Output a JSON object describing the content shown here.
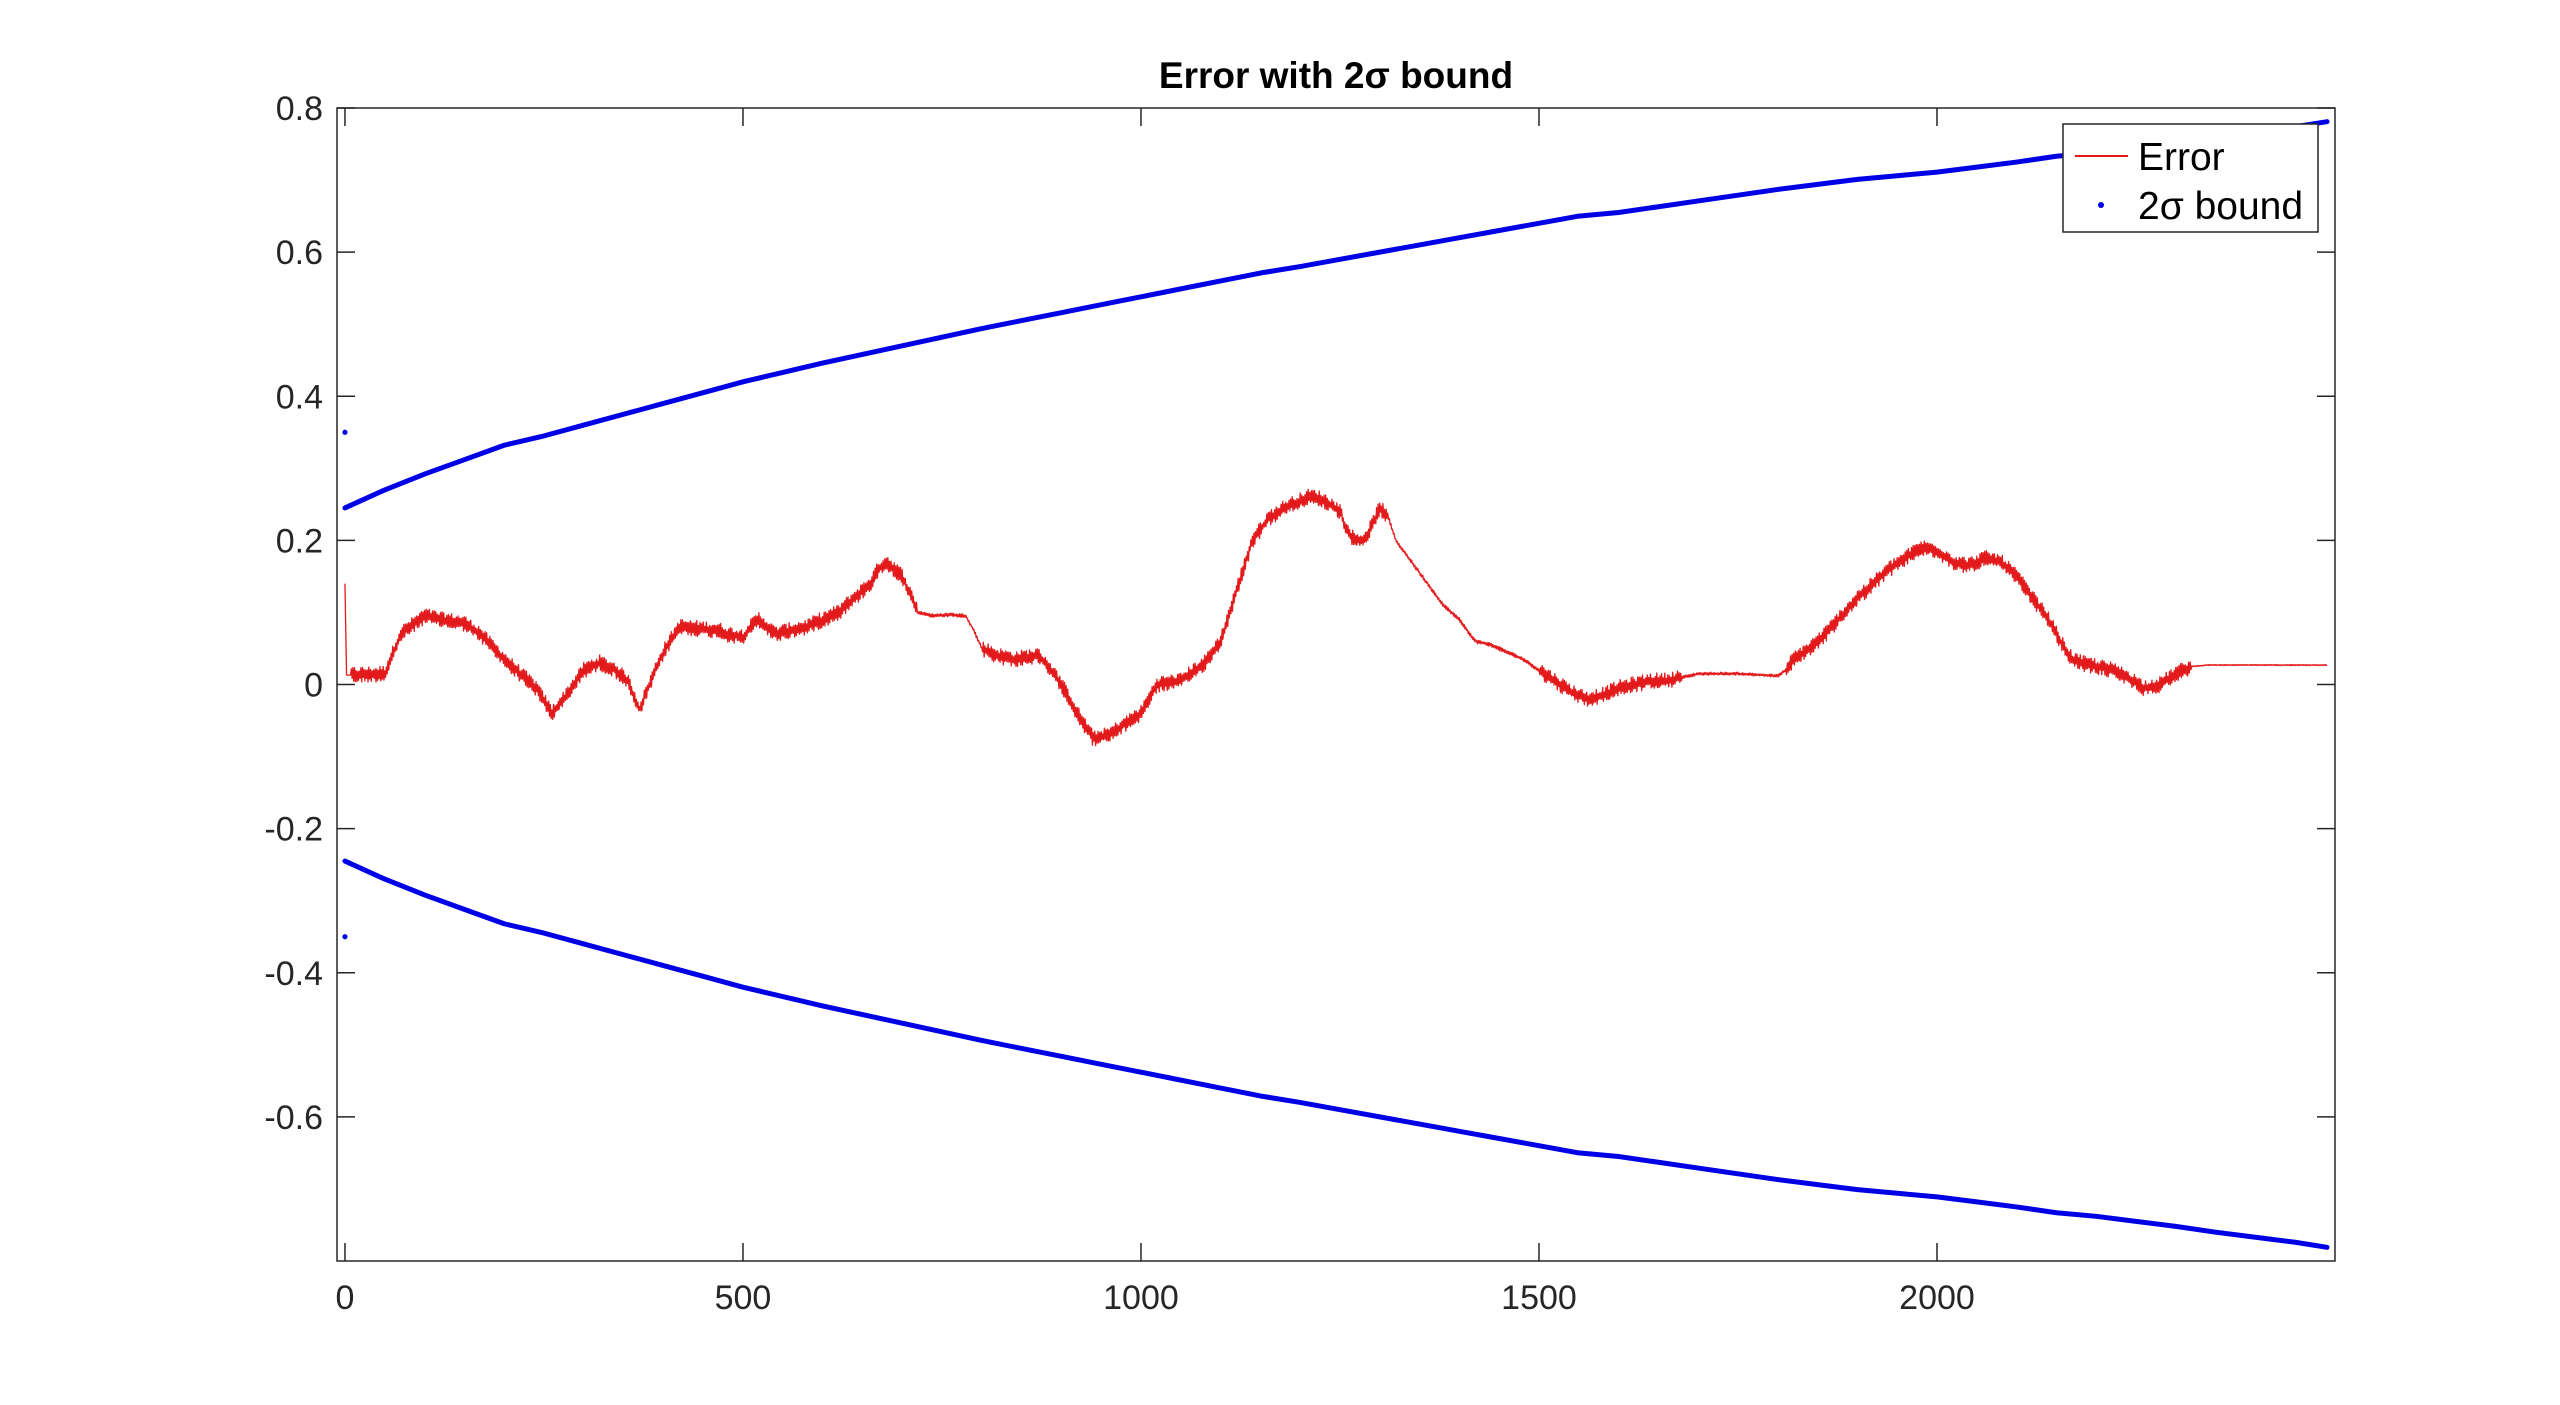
{
  "chart_data": {
    "type": "line",
    "title": "Error with 2σ bound",
    "xlabel": "",
    "ylabel": "",
    "xlim": [
      -10,
      2500
    ],
    "ylim": [
      -0.8,
      0.8
    ],
    "grid": false,
    "legend_position": "top-right",
    "x_ticks": [
      0,
      500,
      1000,
      1500,
      2000
    ],
    "x_tick_labels": [
      "0",
      "500",
      "1000",
      "1500",
      "2000"
    ],
    "y_ticks": [
      0.8,
      0.6,
      0.4,
      0.2,
      0,
      -0.2,
      -0.4,
      -0.6
    ],
    "y_tick_labels": [
      "0.8",
      "0.6",
      "0.4",
      "0.2",
      "0",
      "-0.2",
      "-0.4",
      "-0.6"
    ],
    "legend": [
      {
        "label": "Error",
        "marker": "line",
        "color": "#e31a1c"
      },
      {
        "label": "2σ bound",
        "marker": "dot",
        "color": "#0000e6"
      }
    ],
    "series": [
      {
        "name": "Error",
        "color": "#e31a1c",
        "style": "thin-line-with-jitter",
        "x": [
          0,
          2,
          5,
          50,
          70,
          100,
          120,
          150,
          170,
          200,
          220,
          240,
          260,
          275,
          300,
          320,
          340,
          355,
          370,
          390,
          400,
          420,
          440,
          470,
          480,
          500,
          510,
          520,
          540,
          560,
          580,
          600,
          620,
          640,
          660,
          670,
          680,
          700,
          720,
          740,
          760,
          780,
          790,
          800,
          820,
          840,
          870,
          880,
          900,
          920,
          940,
          960,
          980,
          1000,
          1010,
          1020,
          1050,
          1080,
          1100,
          1120,
          1140,
          1160,
          1180,
          1200,
          1210,
          1220,
          1230,
          1250,
          1260,
          1270,
          1280,
          1290,
          1300,
          1310,
          1320,
          1340,
          1360,
          1380,
          1400,
          1420,
          1440,
          1460,
          1480,
          1500,
          1520,
          1540,
          1560,
          1580,
          1600,
          1620,
          1640,
          1660,
          1680,
          1700,
          1720,
          1750,
          1780,
          1800,
          1810,
          1820,
          1840,
          1860,
          1880,
          1900,
          1920,
          1940,
          1960,
          1980,
          2000,
          2020,
          2040,
          2060,
          2080,
          2100,
          2120,
          2140,
          2160,
          2170,
          2180,
          2200,
          2220,
          2240,
          2260,
          2280,
          2300,
          2320,
          2340,
          2360,
          2400,
          2450,
          2490
        ],
        "y": [
          0.14,
          0.013,
          0.013,
          0.015,
          0.07,
          0.095,
          0.09,
          0.085,
          0.07,
          0.035,
          0.015,
          -0.005,
          -0.04,
          -0.02,
          0.02,
          0.03,
          0.02,
          0.005,
          -0.035,
          0.02,
          0.045,
          0.08,
          0.078,
          0.075,
          0.07,
          0.066,
          0.08,
          0.09,
          0.07,
          0.075,
          0.08,
          0.09,
          0.1,
          0.12,
          0.14,
          0.16,
          0.17,
          0.15,
          0.1,
          0.095,
          0.097,
          0.095,
          0.075,
          0.05,
          0.04,
          0.035,
          0.04,
          0.03,
          0.0,
          -0.04,
          -0.075,
          -0.07,
          -0.055,
          -0.04,
          -0.02,
          0.0,
          0.005,
          0.03,
          0.06,
          0.13,
          0.2,
          0.23,
          0.245,
          0.255,
          0.26,
          0.26,
          0.255,
          0.24,
          0.21,
          0.2,
          0.2,
          0.22,
          0.245,
          0.235,
          0.2,
          0.17,
          0.14,
          0.11,
          0.09,
          0.06,
          0.055,
          0.045,
          0.035,
          0.02,
          0.005,
          -0.01,
          -0.02,
          -0.015,
          -0.005,
          0.0,
          0.005,
          0.005,
          0.01,
          0.015,
          0.015,
          0.015,
          0.013,
          0.012,
          0.02,
          0.035,
          0.05,
          0.07,
          0.095,
          0.12,
          0.14,
          0.16,
          0.175,
          0.19,
          0.185,
          0.17,
          0.165,
          0.175,
          0.17,
          0.15,
          0.12,
          0.09,
          0.05,
          0.035,
          0.03,
          0.025,
          0.02,
          0.01,
          -0.005,
          0.0,
          0.015,
          0.025,
          0.027,
          0.027,
          0.027,
          0.027,
          0.027
        ]
      },
      {
        "name": "2σ bound",
        "color": "#0000e6",
        "style": "dense-dots",
        "x": [
          0,
          50,
          100,
          150,
          200,
          250,
          300,
          350,
          400,
          450,
          500,
          550,
          600,
          650,
          700,
          750,
          800,
          850,
          900,
          950,
          1000,
          1050,
          1100,
          1150,
          1200,
          1250,
          1300,
          1350,
          1400,
          1450,
          1500,
          1550,
          1600,
          1650,
          1700,
          1750,
          1800,
          1850,
          1900,
          1950,
          2000,
          2050,
          2100,
          2150,
          2200,
          2250,
          2300,
          2350,
          2400,
          2450,
          2490
        ],
        "upper": [
          0.245,
          0.27,
          0.292,
          0.312,
          0.332,
          0.345,
          0.36,
          0.375,
          0.39,
          0.405,
          0.42,
          0.433,
          0.446,
          0.458,
          0.47,
          0.482,
          0.494,
          0.505,
          0.516,
          0.527,
          0.538,
          0.549,
          0.56,
          0.571,
          0.58,
          0.59,
          0.6,
          0.61,
          0.62,
          0.63,
          0.64,
          0.65,
          0.655,
          0.663,
          0.671,
          0.679,
          0.687,
          0.694,
          0.701,
          0.706,
          0.711,
          0.718,
          0.725,
          0.733,
          0.738,
          0.745,
          0.752,
          0.76,
          0.767,
          0.774,
          0.781
        ],
        "lower": [
          -0.245,
          -0.27,
          -0.292,
          -0.312,
          -0.332,
          -0.345,
          -0.36,
          -0.375,
          -0.39,
          -0.405,
          -0.42,
          -0.433,
          -0.446,
          -0.458,
          -0.47,
          -0.482,
          -0.494,
          -0.505,
          -0.516,
          -0.527,
          -0.538,
          -0.549,
          -0.56,
          -0.571,
          -0.58,
          -0.59,
          -0.6,
          -0.61,
          -0.62,
          -0.63,
          -0.64,
          -0.65,
          -0.655,
          -0.663,
          -0.671,
          -0.679,
          -0.687,
          -0.694,
          -0.701,
          -0.706,
          -0.711,
          -0.718,
          -0.725,
          -0.733,
          -0.738,
          -0.745,
          -0.752,
          -0.76,
          -0.767,
          -0.774,
          -0.781
        ],
        "outliers": [
          {
            "x": 0,
            "y": 0.35
          },
          {
            "x": 0,
            "y": -0.35
          }
        ]
      }
    ]
  }
}
